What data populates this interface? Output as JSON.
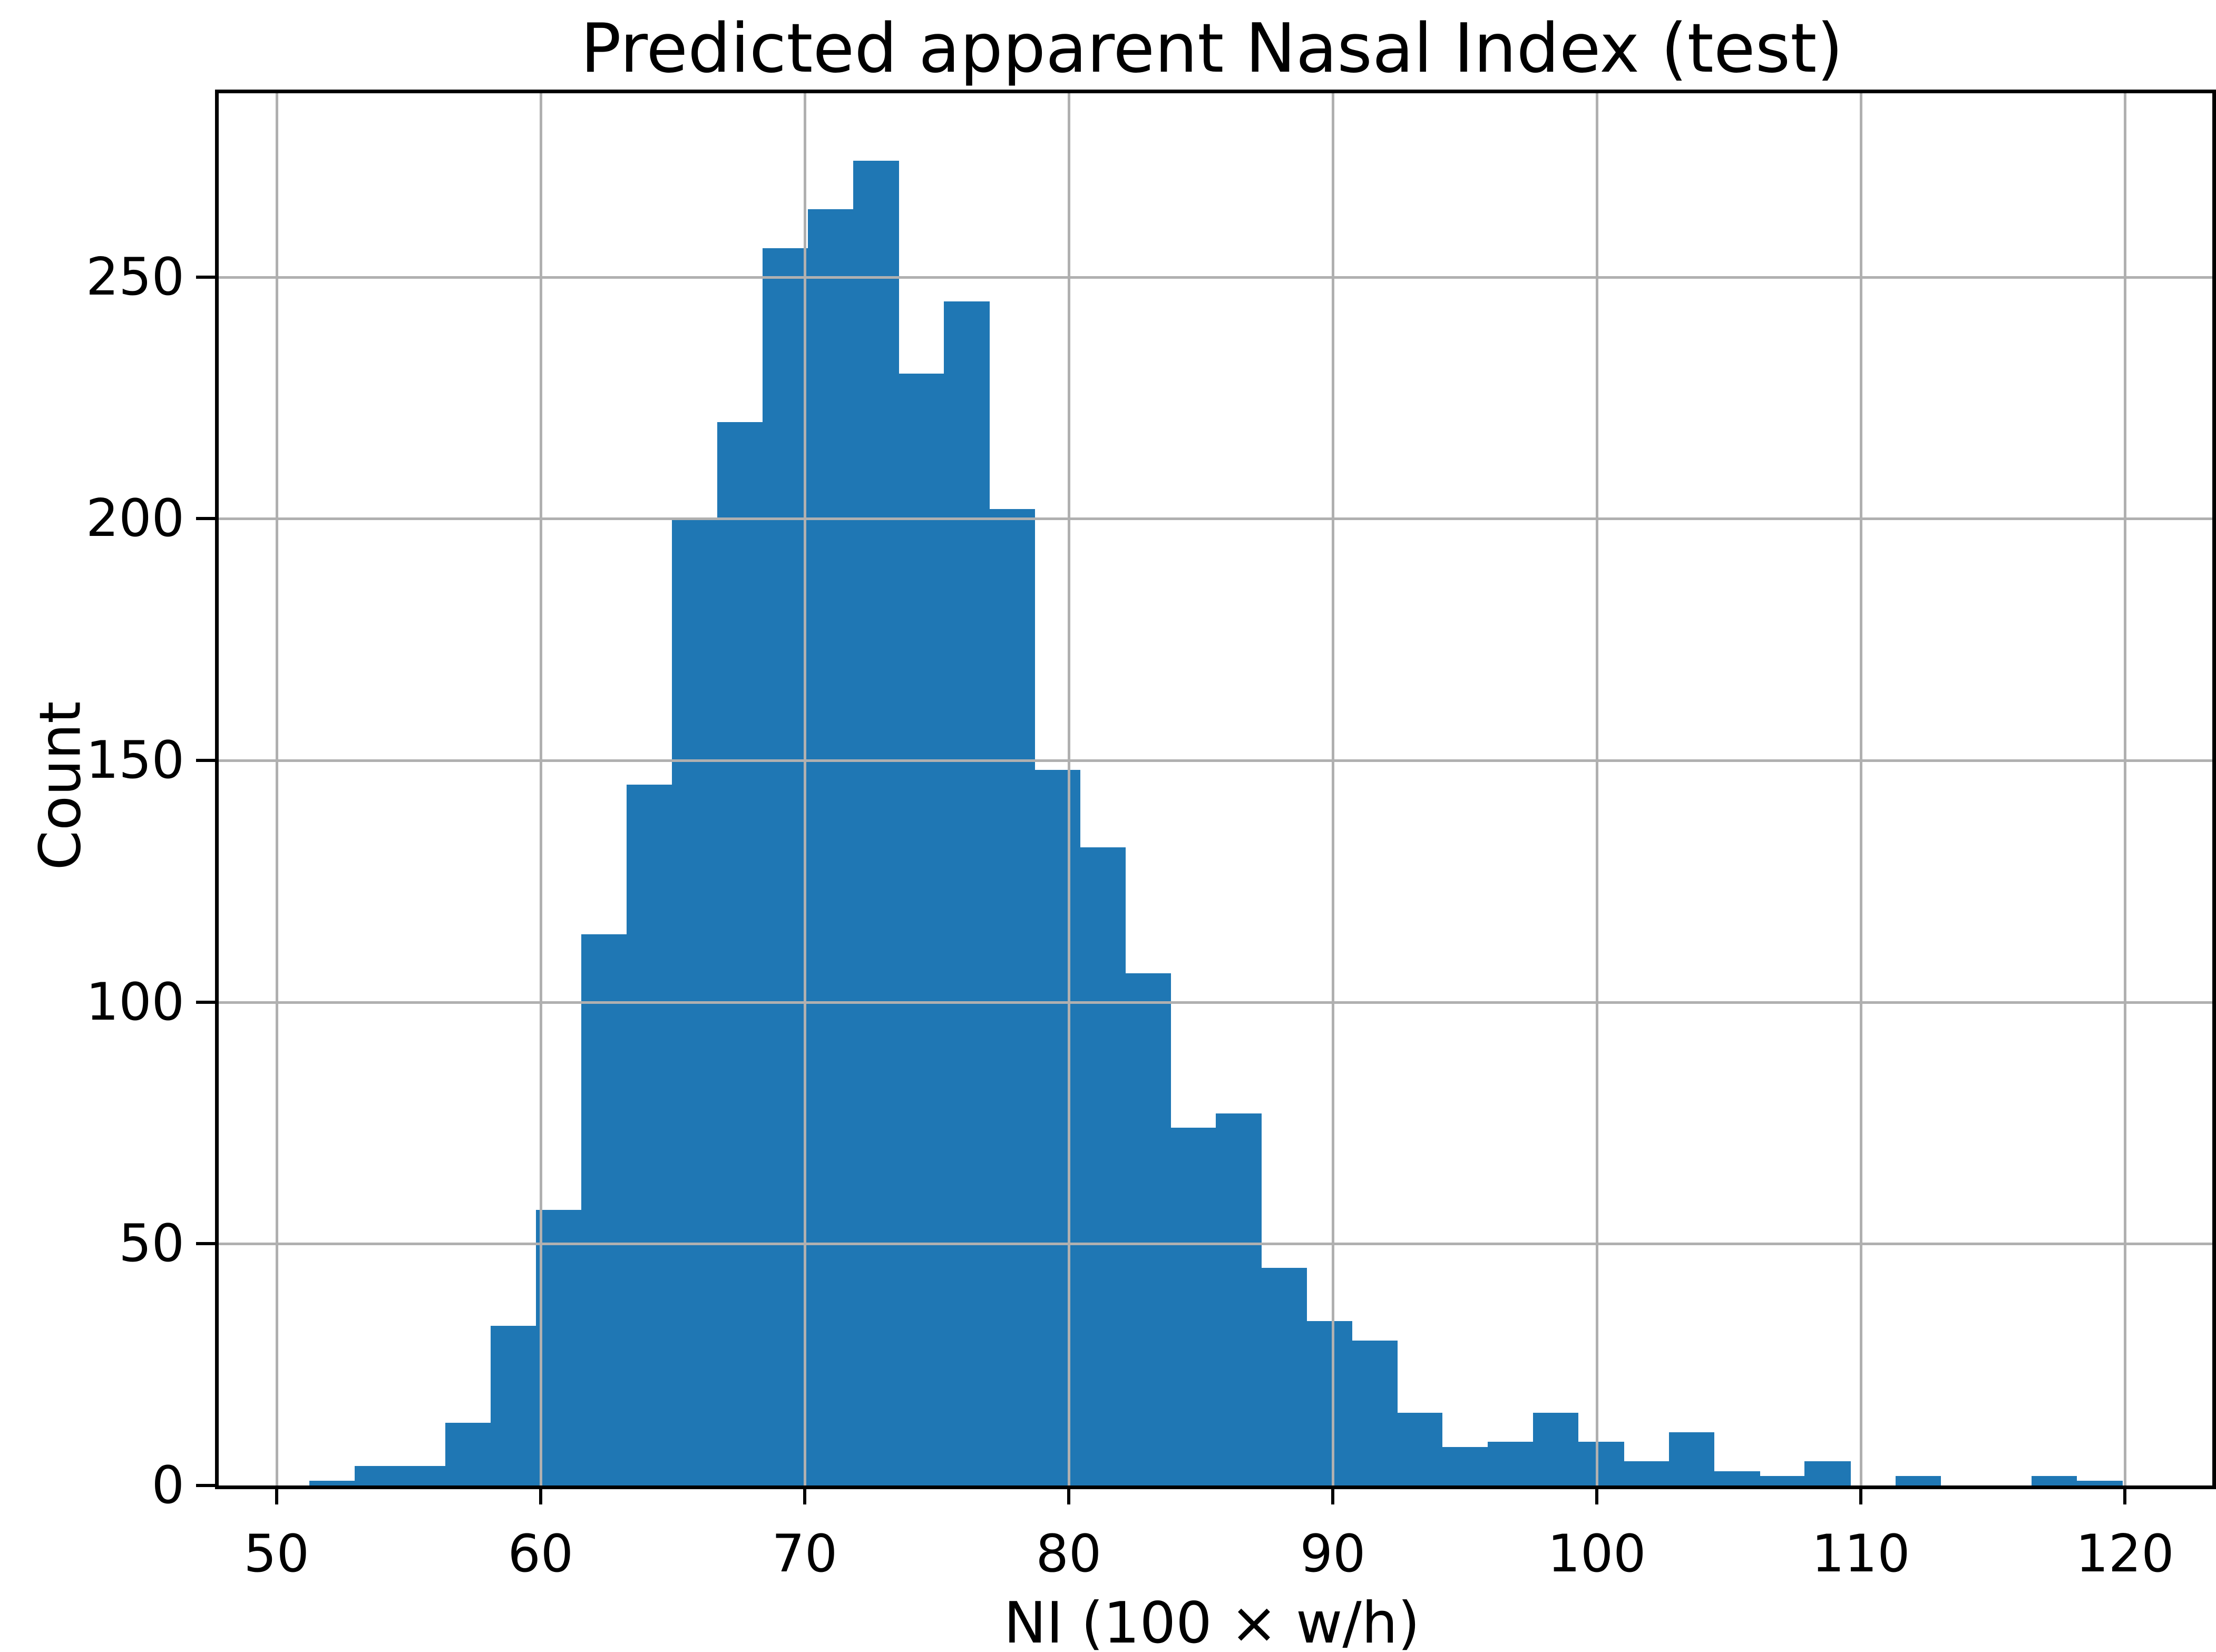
{
  "chart_data": {
    "type": "bar",
    "subtype": "histogram",
    "title": "Predicted apparent Nasal Index (test)",
    "xlabel": "NI (100 × w/h)",
    "ylabel": "Count",
    "bin_edges": [
      51.24,
      52.96,
      54.67,
      56.39,
      58.1,
      59.82,
      61.54,
      63.25,
      64.97,
      66.69,
      68.4,
      70.12,
      71.83,
      73.55,
      75.27,
      76.98,
      78.7,
      80.42,
      82.13,
      83.85,
      85.56,
      87.28,
      89.0,
      90.71,
      92.43,
      94.14,
      95.86,
      97.58,
      99.29,
      101.01,
      102.73,
      104.44,
      106.16,
      107.87,
      109.59,
      111.31,
      113.02,
      114.74,
      116.46,
      118.17,
      119.89
    ],
    "values": [
      1,
      4,
      4,
      13,
      33,
      57,
      114,
      145,
      200,
      220,
      256,
      264,
      274,
      230,
      245,
      202,
      148,
      132,
      106,
      74,
      77,
      45,
      34,
      30,
      15,
      8,
      9,
      15,
      9,
      5,
      11,
      3,
      2,
      5,
      0,
      2,
      0,
      0,
      2,
      1
    ],
    "x_ticks": [
      50,
      60,
      70,
      80,
      90,
      100,
      110,
      120
    ],
    "y_ticks": [
      0,
      50,
      100,
      150,
      200,
      250
    ],
    "xlim": [
      47.81,
      123.31
    ],
    "ylim": [
      0,
      288
    ],
    "grid": true,
    "legend": false,
    "bar_color": "#1f77b4",
    "grid_color": "#b0b0b0",
    "axis_color": "#000000",
    "background_color": "#ffffff"
  }
}
